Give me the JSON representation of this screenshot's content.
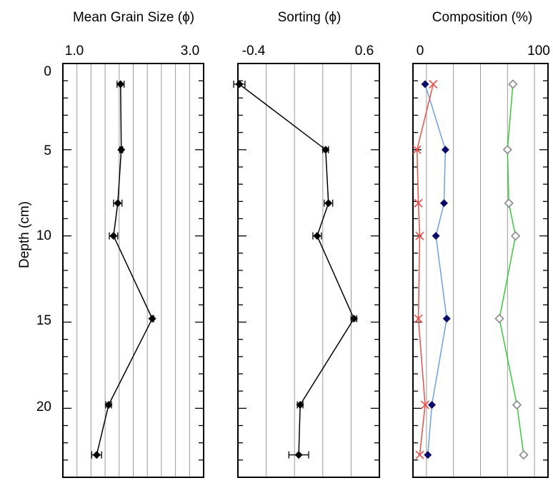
{
  "colors": {
    "axis": "#000000",
    "grid": "#9a9a9a",
    "series_black": "#000000",
    "marker_navy": "#0a0a6b",
    "line_blue": "#6fa0e0",
    "line_red": "#e8504a",
    "line_green": "#3cc83c",
    "marker_gray": "#8a8a8a"
  },
  "chart_data": [
    {
      "type": "line",
      "title": "Mean Grain Size (ϕ)",
      "ylabel": "Depth (cm)",
      "xlim": [
        1.0,
        3.0
      ],
      "ylim": [
        0,
        24
      ],
      "y_inverted": true,
      "x_tick_labels": [
        "1.0",
        "3.0"
      ],
      "y_tick_labels": [
        "0",
        "5",
        "10",
        "15",
        "20"
      ],
      "grid": "vertical",
      "series": [
        {
          "marker": "filled-diamond",
          "x": [
            1.82,
            1.83,
            1.78,
            1.72,
            2.27,
            1.65,
            1.48
          ],
          "y": [
            1.2,
            5.0,
            8.1,
            10.0,
            14.8,
            19.8,
            22.7
          ],
          "x_error": [
            0.05,
            0.02,
            0.06,
            0.06,
            0.02,
            0.04,
            0.07
          ]
        }
      ]
    },
    {
      "type": "line",
      "title": "Sorting (ϕ)",
      "xlim": [
        -0.4,
        0.6
      ],
      "ylim": [
        0,
        24
      ],
      "y_inverted": true,
      "x_tick_labels": [
        "-0.4",
        "0.6"
      ],
      "grid": "vertical",
      "series": [
        {
          "marker": "filled-diamond",
          "x": [
            -0.39,
            0.22,
            0.24,
            0.16,
            0.42,
            0.04,
            0.03
          ],
          "y": [
            1.2,
            5.0,
            8.1,
            10.0,
            14.8,
            19.8,
            22.7
          ],
          "x_error": [
            0.04,
            0.02,
            0.03,
            0.03,
            0.02,
            0.02,
            0.07
          ]
        }
      ]
    },
    {
      "type": "line",
      "title": "Composition (%)",
      "xlim": [
        0,
        100
      ],
      "ylim": [
        0,
        24
      ],
      "y_inverted": true,
      "x_tick_labels": [
        "0",
        "100"
      ],
      "grid": "vertical",
      "series": [
        {
          "color_key": "line_blue",
          "marker": "navy-diamond",
          "x": [
            9,
            24,
            23,
            17,
            25,
            14,
            11
          ],
          "y": [
            1.2,
            5.0,
            8.1,
            10.0,
            14.8,
            19.8,
            22.7
          ]
        },
        {
          "color_key": "line_red",
          "marker": "x",
          "x": [
            15,
            3,
            4,
            5,
            4,
            9,
            5
          ],
          "y": [
            1.2,
            5.0,
            8.1,
            10.0,
            14.8,
            19.8,
            22.7
          ]
        },
        {
          "color_key": "line_green",
          "marker": "open-diamond",
          "x": [
            74,
            70,
            71,
            76,
            64,
            77,
            82
          ],
          "y": [
            1.2,
            5.0,
            8.1,
            10.0,
            14.8,
            19.8,
            22.7
          ]
        }
      ]
    }
  ]
}
